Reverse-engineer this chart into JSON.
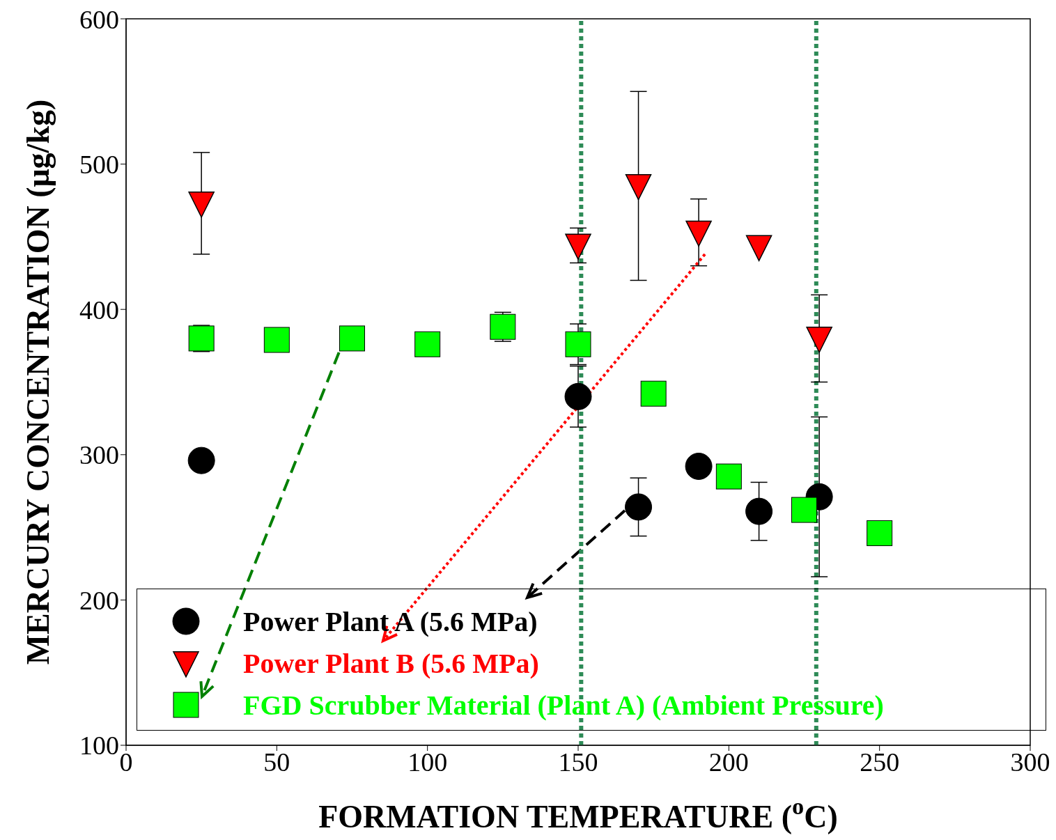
{
  "chart_data": {
    "type": "scatter",
    "xlabel": "FORMATION TEMPERATURE ($^{o}$C)",
    "ylabel": "MERCURY CONCENTRATION (μg/kg)",
    "xlim": [
      0,
      300
    ],
    "xticks": [
      0,
      50,
      100,
      150,
      200,
      250,
      300
    ],
    "ylim": [
      100,
      600
    ],
    "yticks": [
      100,
      200,
      300,
      400,
      500,
      600
    ],
    "grid": false,
    "legend": "bottom",
    "ref_lines": [
      {
        "axis": "x",
        "value": 151,
        "color": "#2e8b57",
        "line_style": "dotted"
      },
      {
        "axis": "x",
        "value": 229,
        "color": "#2e8b57",
        "line_style": "dotted"
      }
    ],
    "series": [
      {
        "name": "Power Plant A (5.6 MPa)",
        "color": "#000000",
        "marker": "circle",
        "x": [
          25,
          150,
          170,
          190,
          210,
          230
        ],
        "values": [
          296,
          340,
          264,
          292,
          261,
          271
        ],
        "errors": [
          null,
          21,
          20,
          null,
          20,
          55
        ]
      },
      {
        "name": "Power Plant B (5.6 MPa)",
        "color": "#ff0000",
        "marker": "triangle",
        "x": [
          25,
          150,
          170,
          190,
          210,
          230
        ],
        "values": [
          473,
          444,
          485,
          453,
          443,
          380
        ],
        "errors": [
          35,
          12,
          65,
          23,
          null,
          30
        ]
      },
      {
        "name": "FGD Scrubber Material (Plant A) (Ambient Pressure)",
        "color": "#00ff00",
        "marker": "square",
        "x": [
          25,
          50,
          75,
          100,
          125,
          150,
          175,
          200,
          225,
          250
        ],
        "values": [
          380,
          379,
          380,
          376,
          388,
          376,
          342,
          285,
          262,
          246
        ],
        "errors": [
          9,
          null,
          null,
          null,
          10,
          14,
          null,
          null,
          null,
          null
        ]
      }
    ]
  }
}
